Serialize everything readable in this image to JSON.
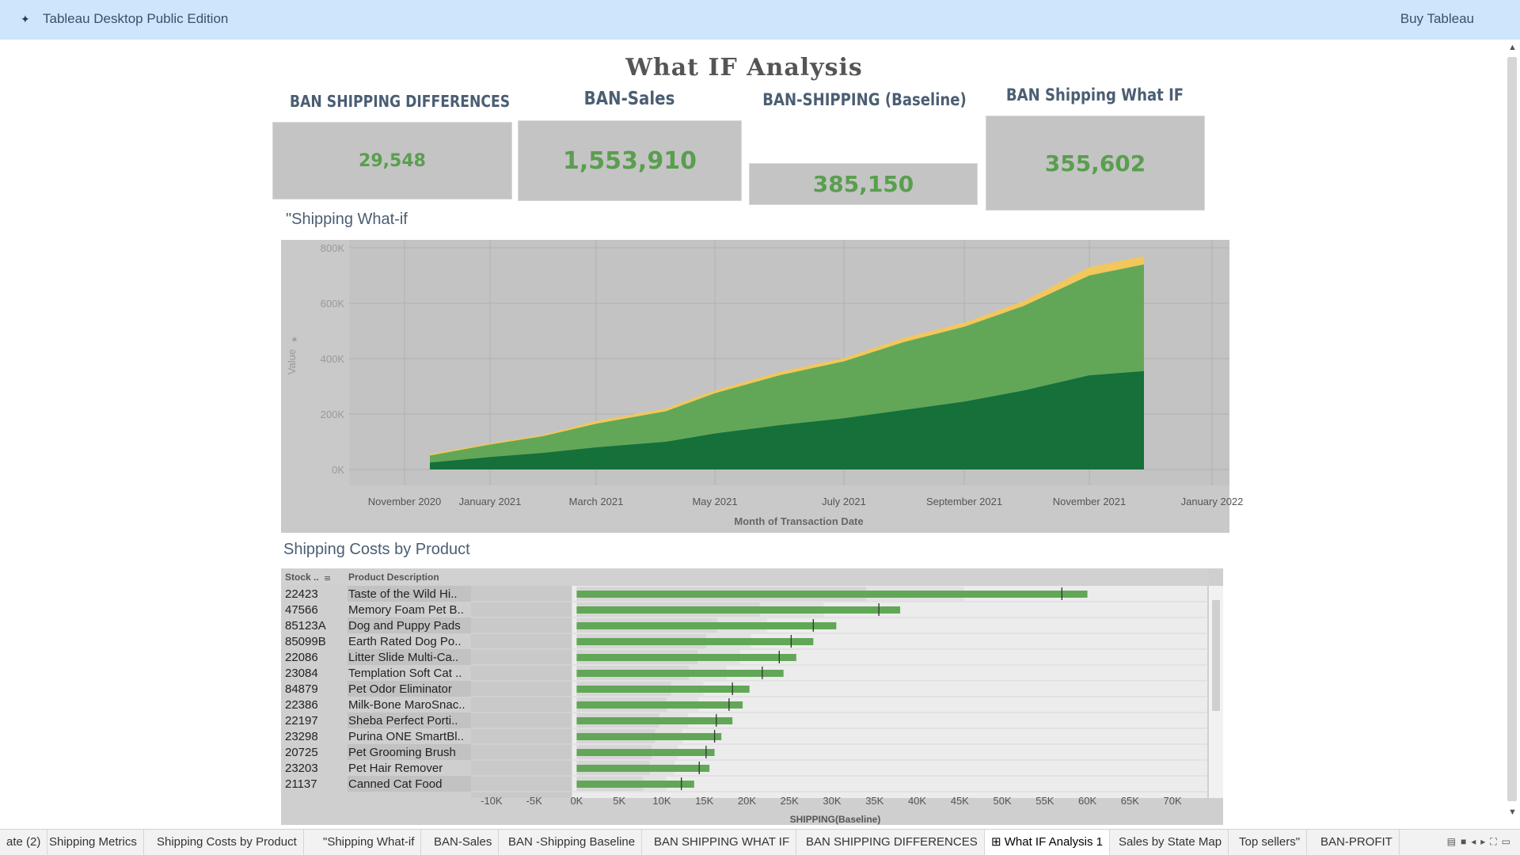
{
  "app": {
    "title": "Tableau Desktop Public Edition",
    "buy_label": "Buy Tableau"
  },
  "dashboard": {
    "title": "What IF Analysis"
  },
  "bans": [
    {
      "title": "BAN SHIPPING DIFFERENCES",
      "value": "29,548"
    },
    {
      "title": "BAN-Sales",
      "value": "1,553,910"
    },
    {
      "title": "BAN-SHIPPING (Baseline)",
      "value": "385,150"
    },
    {
      "title": "BAN Shipping What IF",
      "value": "355,602"
    }
  ],
  "area_section": {
    "title": "\"Shipping What-if"
  },
  "bar_section": {
    "title": "Shipping Costs by Product"
  },
  "colors": {
    "dark_green": "#15703a",
    "mid_green": "#62a757",
    "yellow": "#f2c75c",
    "panel_gray": "#c9c9c9"
  },
  "chart_data": [
    {
      "type": "area",
      "xlabel": "Month of Transaction Date",
      "ylabel": "Value",
      "x_ticks": [
        "November 2020",
        "January 2021",
        "March 2021",
        "May 2021",
        "July 2021",
        "September 2021",
        "November 2021",
        "January 2022"
      ],
      "y_ticks": [
        "0K",
        "200K",
        "400K",
        "600K",
        "800K"
      ],
      "ylim": [
        0,
        800000
      ],
      "x": [
        "2020-12",
        "2021-01",
        "2021-02",
        "2021-03",
        "2021-04",
        "2021-05",
        "2021-06",
        "2021-07",
        "2021-08",
        "2021-09",
        "2021-10",
        "2021-11",
        "2021-12"
      ],
      "series": [
        {
          "values": [
            25000,
            45000,
            60000,
            80000,
            100000,
            130000,
            160000,
            185000,
            215000,
            245000,
            285000,
            340000,
            355000
          ]
        },
        {
          "values": [
            25000,
            45000,
            60000,
            85000,
            110000,
            145000,
            180000,
            205000,
            245000,
            270000,
            305000,
            360000,
            385000
          ]
        },
        {
          "values": [
            5000,
            5000,
            5000,
            10000,
            10000,
            10000,
            12000,
            12000,
            15000,
            15000,
            18000,
            30000,
            30000
          ]
        }
      ],
      "grid": true
    },
    {
      "type": "bar",
      "xlabel": "SHIPPING(Baseline)",
      "columns": [
        "Stock ..",
        "Product Description"
      ],
      "x_ticks": [
        "-10K",
        "-5K",
        "0K",
        "5K",
        "10K",
        "15K",
        "20K",
        "25K",
        "30K",
        "35K",
        "40K",
        "45K",
        "50K",
        "55K",
        "60K",
        "65K",
        "70K"
      ],
      "xlim": [
        -12500,
        72500
      ],
      "rows": [
        {
          "stock": "22423",
          "product": "Taste of the Wild Hi..",
          "value": 60000,
          "reference": 57000,
          "band1": 34000,
          "band2": 45500
        },
        {
          "stock": "47566",
          "product": "Memory Foam Pet B..",
          "value": 38000,
          "reference": 35500,
          "band1": 21500,
          "band2": 29000
        },
        {
          "stock": "85123A",
          "product": "Dog and Puppy Pads",
          "value": 30500,
          "reference": 27800,
          "band1": 16500,
          "band2": 22400
        },
        {
          "stock": "85099B",
          "product": "Earth Rated Dog Po..",
          "value": 27800,
          "reference": 25200,
          "band1": 15200,
          "band2": 20500
        },
        {
          "stock": "22086",
          "product": "Litter Slide Multi-Ca..",
          "value": 25800,
          "reference": 23800,
          "band1": 14200,
          "band2": 19200
        },
        {
          "stock": "23084",
          "product": "Templation Soft Cat ..",
          "value": 24300,
          "reference": 21800,
          "band1": 13200,
          "band2": 17600
        },
        {
          "stock": "84879",
          "product": "Pet Odor Eliminator",
          "value": 20300,
          "reference": 18300,
          "band1": 11100,
          "band2": 14900
        },
        {
          "stock": "22386",
          "product": "Milk-Bone MaroSnac..",
          "value": 19500,
          "reference": 17900,
          "band1": 10600,
          "band2": 14300
        },
        {
          "stock": "22197",
          "product": "Sheba Perfect Porti..",
          "value": 18300,
          "reference": 16400,
          "band1": 9700,
          "band2": 13100
        },
        {
          "stock": "23298",
          "product": "Purina ONE SmartBl..",
          "value": 17000,
          "reference": 16200,
          "band1": 9200,
          "band2": 12400
        },
        {
          "stock": "20725",
          "product": "Pet Grooming Brush",
          "value": 16200,
          "reference": 15200,
          "band1": 8800,
          "band2": 11900
        },
        {
          "stock": "23203",
          "product": "Pet Hair Remover",
          "value": 15600,
          "reference": 14400,
          "band1": 8600,
          "band2": 11500
        },
        {
          "stock": "21137",
          "product": "Canned Cat Food",
          "value": 13800,
          "reference": 12300,
          "band1": 7800,
          "band2": 10500
        }
      ]
    }
  ],
  "tabs": [
    {
      "label": "ate (2)"
    },
    {
      "label": "Shipping Metrics"
    },
    {
      "label": "Shipping Costs by Product"
    },
    {
      "label": "\"Shipping What-if"
    },
    {
      "label": "BAN-Sales"
    },
    {
      "label": "BAN -Shipping Baseline"
    },
    {
      "label": "BAN SHIPPING WHAT IF"
    },
    {
      "label": "BAN SHIPPING DIFFERENCES"
    },
    {
      "label": "What IF Analysis 1",
      "active": true,
      "icon": "dashboard-icon"
    },
    {
      "label": "Sales by State Map"
    },
    {
      "label": "Top sellers\""
    },
    {
      "label": "BAN-PROFIT"
    }
  ]
}
